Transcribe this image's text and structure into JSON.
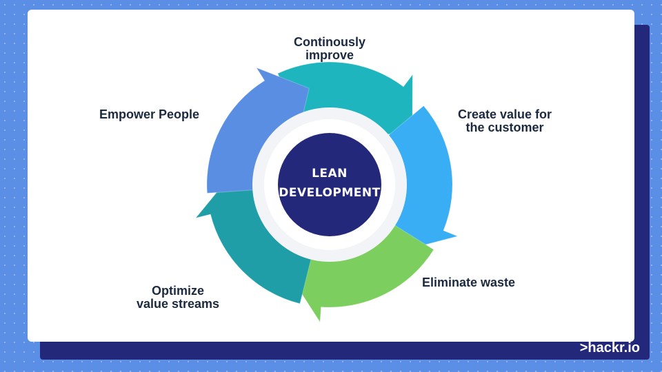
{
  "diagram": {
    "center": {
      "line1": "LEAN",
      "line2": "DEVELOPMENT"
    },
    "steps": [
      {
        "label": "Continously\nimprove",
        "color": "#1fb5be"
      },
      {
        "label": "Create value for\nthe customer",
        "color": "#3aaef5"
      },
      {
        "label": "Eliminate waste",
        "color": "#7ccf5f"
      },
      {
        "label": "Optimize\nvalue streams",
        "color": "#1f9ea8"
      },
      {
        "label": "Empower People",
        "color": "#5a8ee2"
      }
    ],
    "center_color": "#23287a"
  },
  "brand": {
    "text": ">hackr.io"
  }
}
